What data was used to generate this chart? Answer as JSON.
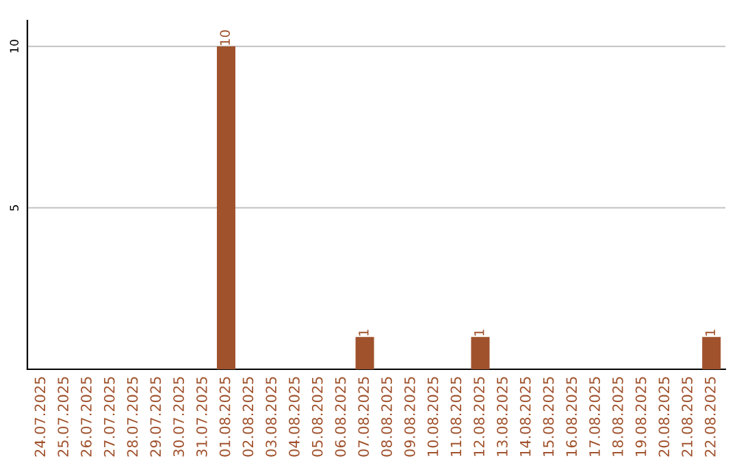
{
  "chart_data": {
    "type": "bar",
    "categories": [
      "24.07.2025",
      "25.07.2025",
      "26.07.2025",
      "27.07.2025",
      "28.07.2025",
      "29.07.2025",
      "30.07.2025",
      "31.07.2025",
      "01.08.2025",
      "02.08.2025",
      "03.08.2025",
      "04.08.2025",
      "05.08.2025",
      "06.08.2025",
      "07.08.2025",
      "08.08.2025",
      "09.08.2025",
      "10.08.2025",
      "11.08.2025",
      "12.08.2025",
      "13.08.2025",
      "14.08.2025",
      "15.08.2025",
      "16.08.2025",
      "17.08.2025",
      "18.08.2025",
      "19.08.2025",
      "20.08.2025",
      "21.08.2025",
      "22.08.2025"
    ],
    "values": [
      0,
      0,
      0,
      0,
      0,
      0,
      0,
      0,
      10,
      0,
      0,
      0,
      0,
      0,
      1,
      0,
      0,
      0,
      0,
      1,
      0,
      0,
      0,
      0,
      0,
      0,
      0,
      0,
      0,
      1
    ],
    "value_labels": [
      null,
      null,
      null,
      null,
      null,
      null,
      null,
      null,
      "10",
      null,
      null,
      null,
      null,
      null,
      "1",
      null,
      null,
      null,
      null,
      "1",
      null,
      null,
      null,
      null,
      null,
      null,
      null,
      null,
      null,
      "1"
    ],
    "color": "#a0522d",
    "ylim": [
      0,
      10.8
    ],
    "yticks": [
      5,
      10
    ],
    "grid": "y",
    "legend": false
  }
}
